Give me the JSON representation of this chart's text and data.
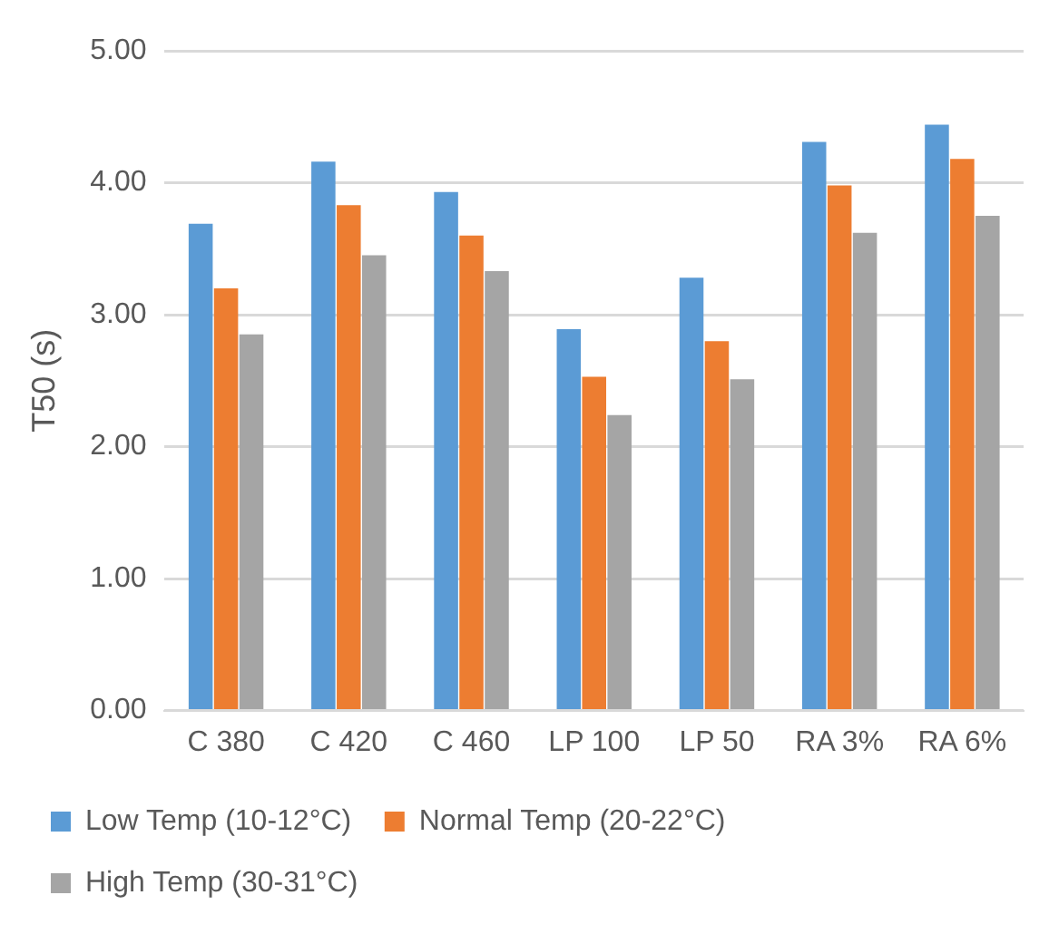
{
  "chart_data": {
    "type": "bar",
    "ylabel": "T50 (s)",
    "categories": [
      "C 380",
      "C 420",
      "C 460",
      "LP 100",
      "LP 50",
      "RA 3%",
      "RA 6%"
    ],
    "series": [
      {
        "name": "Low Temp (10-12°C)",
        "color": "#5b9bd5",
        "values": [
          3.69,
          4.16,
          3.93,
          2.89,
          3.28,
          4.31,
          4.44
        ]
      },
      {
        "name": "Normal Temp (20-22°C)",
        "color": "#ed7d31",
        "values": [
          3.2,
          3.83,
          3.6,
          2.53,
          2.8,
          3.98,
          4.18
        ]
      },
      {
        "name": "High Temp (30-31°C)",
        "color": "#a5a5a5",
        "values": [
          2.85,
          3.45,
          3.33,
          2.24,
          2.51,
          3.62,
          3.75
        ]
      }
    ],
    "ylim": [
      0,
      5
    ],
    "yticks": [
      {
        "value": 0,
        "label": "0.00"
      },
      {
        "value": 1,
        "label": "1.00"
      },
      {
        "value": 2,
        "label": "2.00"
      },
      {
        "value": 3,
        "label": "3.00"
      },
      {
        "value": 4,
        "label": "4.00"
      },
      {
        "value": 5,
        "label": "5.00"
      }
    ],
    "grid": "y",
    "legend": "bottom"
  }
}
